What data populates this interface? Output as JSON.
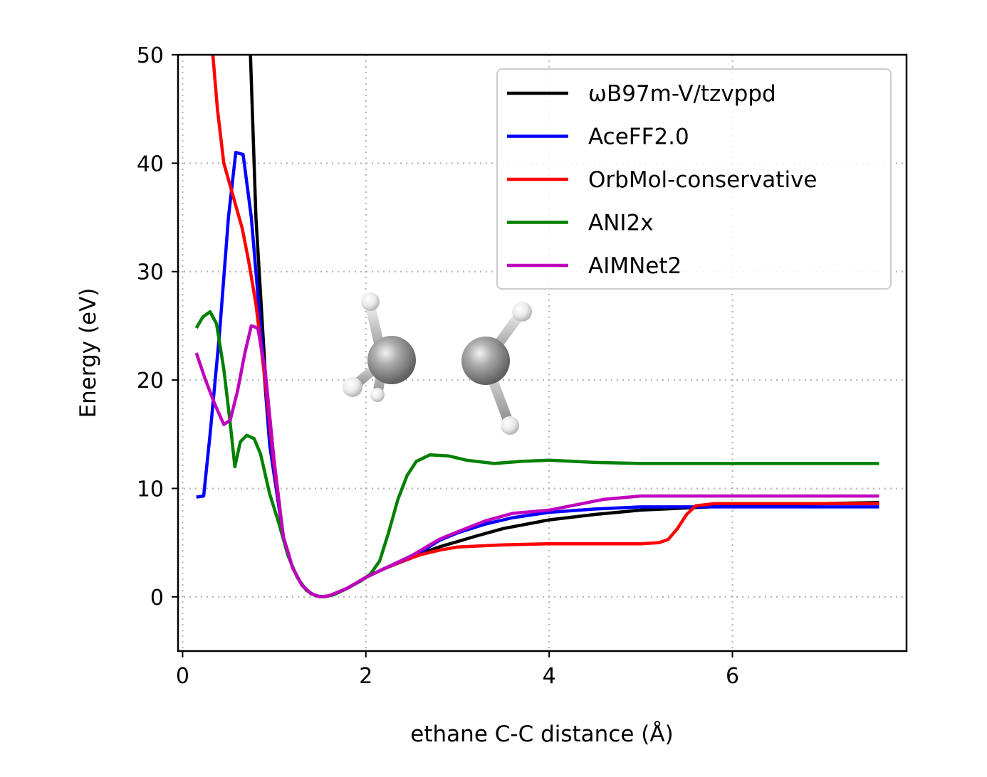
{
  "chart_data": {
    "type": "line",
    "title": "",
    "xlabel": "ethane C-C distance (Å)",
    "ylabel": "Energy (eV)",
    "xlim": [
      -0.05,
      7.9
    ],
    "ylim": [
      -5,
      50
    ],
    "xticks": [
      0,
      2,
      4,
      6
    ],
    "yticks": [
      0,
      10,
      20,
      30,
      40,
      50
    ],
    "grid": true,
    "legend_location": "top-right",
    "series": [
      {
        "name": "ωB97m-V/tzvppd",
        "color": "#000000",
        "points": [
          [
            0.74,
            50
          ],
          [
            0.8,
            35
          ],
          [
            0.9,
            21
          ],
          [
            1.0,
            11.5
          ],
          [
            1.1,
            5.5
          ],
          [
            1.2,
            2.7
          ],
          [
            1.3,
            1.1
          ],
          [
            1.4,
            0.3
          ],
          [
            1.5,
            0.0
          ],
          [
            1.6,
            0.1
          ],
          [
            1.7,
            0.4
          ],
          [
            1.8,
            0.8
          ],
          [
            1.9,
            1.3
          ],
          [
            2.0,
            1.8
          ],
          [
            2.2,
            2.6
          ],
          [
            2.4,
            3.3
          ],
          [
            2.6,
            4.0
          ],
          [
            2.8,
            4.6
          ],
          [
            3.0,
            5.1
          ],
          [
            3.2,
            5.6
          ],
          [
            3.5,
            6.3
          ],
          [
            4.0,
            7.1
          ],
          [
            4.5,
            7.6
          ],
          [
            5.0,
            8.0
          ],
          [
            5.5,
            8.2
          ],
          [
            6.0,
            8.4
          ],
          [
            6.5,
            8.5
          ],
          [
            7.0,
            8.6
          ],
          [
            7.6,
            8.7
          ]
        ]
      },
      {
        "name": "AceFF2.0",
        "color": "#0000ff",
        "points": [
          [
            0.15,
            9.2
          ],
          [
            0.23,
            9.3
          ],
          [
            0.3,
            15
          ],
          [
            0.4,
            24
          ],
          [
            0.5,
            35
          ],
          [
            0.58,
            41
          ],
          [
            0.66,
            40.8
          ],
          [
            0.75,
            35
          ],
          [
            0.85,
            25
          ],
          [
            0.95,
            14
          ],
          [
            1.1,
            5.5
          ],
          [
            1.2,
            2.7
          ],
          [
            1.3,
            1.1
          ],
          [
            1.4,
            0.3
          ],
          [
            1.5,
            0.0
          ],
          [
            1.6,
            0.1
          ],
          [
            1.8,
            0.8
          ],
          [
            2.0,
            1.8
          ],
          [
            2.2,
            2.6
          ],
          [
            2.5,
            3.6
          ],
          [
            2.8,
            5.2
          ],
          [
            3.0,
            5.9
          ],
          [
            3.3,
            6.7
          ],
          [
            3.6,
            7.3
          ],
          [
            4.0,
            7.8
          ],
          [
            4.5,
            8.1
          ],
          [
            5.0,
            8.3
          ],
          [
            6.0,
            8.3
          ],
          [
            7.6,
            8.3
          ]
        ]
      },
      {
        "name": "OrbMol-conservative",
        "color": "#ff0000",
        "points": [
          [
            0.33,
            50
          ],
          [
            0.38,
            45
          ],
          [
            0.45,
            40
          ],
          [
            0.55,
            37
          ],
          [
            0.65,
            34
          ],
          [
            0.72,
            31
          ],
          [
            0.8,
            27
          ],
          [
            0.9,
            20
          ],
          [
            1.0,
            12
          ],
          [
            1.1,
            5.5
          ],
          [
            1.2,
            2.7
          ],
          [
            1.3,
            1.1
          ],
          [
            1.4,
            0.3
          ],
          [
            1.5,
            0.0
          ],
          [
            1.6,
            0.1
          ],
          [
            1.8,
            0.8
          ],
          [
            2.0,
            1.8
          ],
          [
            2.2,
            2.6
          ],
          [
            2.4,
            3.3
          ],
          [
            2.6,
            3.9
          ],
          [
            2.8,
            4.3
          ],
          [
            3.0,
            4.6
          ],
          [
            3.5,
            4.8
          ],
          [
            4.0,
            4.9
          ],
          [
            4.5,
            4.9
          ],
          [
            5.0,
            4.9
          ],
          [
            5.2,
            5.0
          ],
          [
            5.3,
            5.3
          ],
          [
            5.4,
            6.3
          ],
          [
            5.5,
            7.6
          ],
          [
            5.6,
            8.4
          ],
          [
            5.8,
            8.6
          ],
          [
            6.5,
            8.6
          ],
          [
            7.6,
            8.6
          ]
        ]
      },
      {
        "name": "ANI2x",
        "color": "#008000",
        "points": [
          [
            0.15,
            24.8
          ],
          [
            0.22,
            25.8
          ],
          [
            0.3,
            26.3
          ],
          [
            0.37,
            25.2
          ],
          [
            0.45,
            21
          ],
          [
            0.52,
            16
          ],
          [
            0.57,
            12
          ],
          [
            0.63,
            14.3
          ],
          [
            0.7,
            14.9
          ],
          [
            0.78,
            14.6
          ],
          [
            0.85,
            13.2
          ],
          [
            0.95,
            9.5
          ],
          [
            1.05,
            6.8
          ],
          [
            1.15,
            3.8
          ],
          [
            1.25,
            1.8
          ],
          [
            1.35,
            0.6
          ],
          [
            1.45,
            0.1
          ],
          [
            1.55,
            0.0
          ],
          [
            1.65,
            0.2
          ],
          [
            1.8,
            0.8
          ],
          [
            1.95,
            1.5
          ],
          [
            2.05,
            2.1
          ],
          [
            2.15,
            3.3
          ],
          [
            2.25,
            6.0
          ],
          [
            2.35,
            9.0
          ],
          [
            2.45,
            11.2
          ],
          [
            2.55,
            12.5
          ],
          [
            2.7,
            13.1
          ],
          [
            2.9,
            13.0
          ],
          [
            3.1,
            12.6
          ],
          [
            3.4,
            12.3
          ],
          [
            3.7,
            12.5
          ],
          [
            4.0,
            12.6
          ],
          [
            4.5,
            12.4
          ],
          [
            5.0,
            12.3
          ],
          [
            6.0,
            12.3
          ],
          [
            7.6,
            12.3
          ]
        ]
      },
      {
        "name": "AIMNet2",
        "color": "#bf00bf",
        "points": [
          [
            0.15,
            22.5
          ],
          [
            0.25,
            20
          ],
          [
            0.35,
            17.8
          ],
          [
            0.45,
            15.9
          ],
          [
            0.52,
            16.3
          ],
          [
            0.6,
            19
          ],
          [
            0.68,
            22.5
          ],
          [
            0.75,
            25
          ],
          [
            0.82,
            24.8
          ],
          [
            0.9,
            21
          ],
          [
            1.0,
            12.5
          ],
          [
            1.1,
            5.5
          ],
          [
            1.2,
            2.7
          ],
          [
            1.3,
            1.1
          ],
          [
            1.4,
            0.3
          ],
          [
            1.5,
            0.0
          ],
          [
            1.6,
            0.1
          ],
          [
            1.8,
            0.8
          ],
          [
            2.0,
            1.8
          ],
          [
            2.2,
            2.6
          ],
          [
            2.5,
            3.8
          ],
          [
            2.8,
            5.3
          ],
          [
            3.0,
            6.0
          ],
          [
            3.3,
            7.0
          ],
          [
            3.6,
            7.7
          ],
          [
            4.0,
            8.0
          ],
          [
            4.3,
            8.5
          ],
          [
            4.6,
            9.0
          ],
          [
            5.0,
            9.3
          ],
          [
            6.0,
            9.3
          ],
          [
            7.6,
            9.3
          ]
        ]
      }
    ],
    "inset": "ethane molecule ball-and-stick model"
  }
}
